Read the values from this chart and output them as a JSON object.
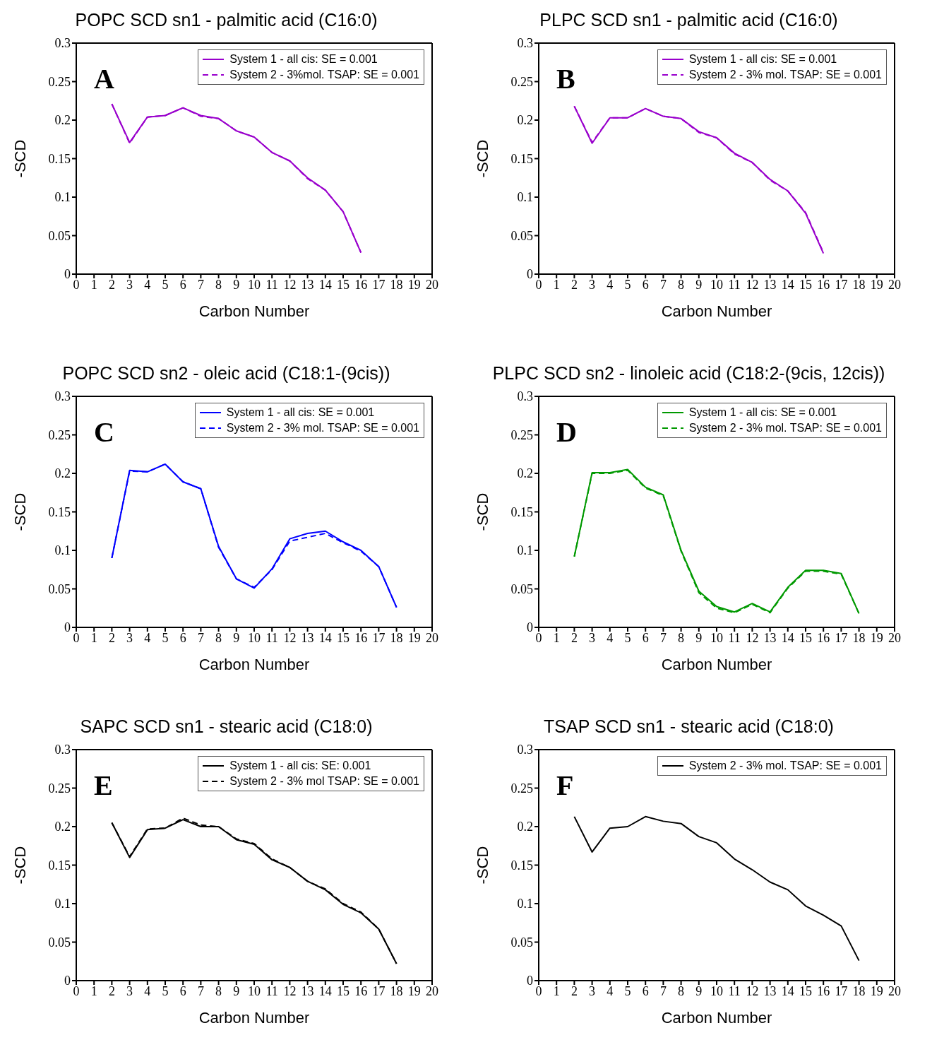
{
  "chart_data": [
    {
      "type": "line",
      "title": "POPC SCD sn1 - palmitic acid (C16:0)",
      "xlabel": "Carbon Number",
      "ylabel": "-SCD",
      "annotations": [
        "A"
      ],
      "x": [
        2,
        3,
        4,
        5,
        6,
        7,
        8,
        9,
        10,
        11,
        12,
        13,
        14,
        15,
        16
      ],
      "xlim": [
        0,
        20
      ],
      "xticks": [
        0,
        1,
        2,
        3,
        4,
        5,
        6,
        7,
        8,
        9,
        10,
        11,
        12,
        13,
        14,
        15,
        16,
        17,
        18,
        19,
        20
      ],
      "ylim": [
        0,
        0.3
      ],
      "yticks": [
        0,
        0.05,
        0.1,
        0.15,
        0.2,
        0.25,
        0.3
      ],
      "grid": false,
      "legend": "top right",
      "marker": "none",
      "series": [
        {
          "name": "System 1 - all cis: SE = 0.001",
          "color": "#9900cc",
          "line_style": "solid",
          "values": [
            0.221,
            0.171,
            0.204,
            0.206,
            0.216,
            0.206,
            0.202,
            0.186,
            0.178,
            0.158,
            0.147,
            0.125,
            0.109,
            0.081,
            0.028
          ]
        },
        {
          "name": "System 2 - 3%mol. TSAP: SE = 0.001",
          "color": "#9900cc",
          "line_style": "dashed",
          "values": [
            0.221,
            0.17,
            0.204,
            0.206,
            0.216,
            0.205,
            0.202,
            0.186,
            0.178,
            0.158,
            0.147,
            0.124,
            0.109,
            0.081,
            0.028
          ]
        }
      ]
    },
    {
      "type": "line",
      "title": "PLPC SCD sn1 - palmitic acid (C16:0)",
      "xlabel": "Carbon Number",
      "ylabel": "-SCD",
      "annotations": [
        "B"
      ],
      "x": [
        2,
        3,
        4,
        5,
        6,
        7,
        8,
        9,
        10,
        11,
        12,
        13,
        14,
        15,
        16
      ],
      "xlim": [
        0,
        20
      ],
      "xticks": [
        0,
        1,
        2,
        3,
        4,
        5,
        6,
        7,
        8,
        9,
        10,
        11,
        12,
        13,
        14,
        15,
        16,
        17,
        18,
        19,
        20
      ],
      "ylim": [
        0,
        0.3
      ],
      "yticks": [
        0,
        0.05,
        0.1,
        0.15,
        0.2,
        0.25,
        0.3
      ],
      "grid": false,
      "legend": "top right",
      "marker": "none",
      "series": [
        {
          "name": "System 1 - all cis: SE = 0.001",
          "color": "#9900cc",
          "line_style": "solid",
          "values": [
            0.218,
            0.17,
            0.203,
            0.203,
            0.215,
            0.205,
            0.202,
            0.185,
            0.177,
            0.157,
            0.145,
            0.123,
            0.108,
            0.079,
            0.027
          ]
        },
        {
          "name": "System 2 - 3% mol. TSAP: SE = 0.001",
          "color": "#9900cc",
          "line_style": "dashed",
          "values": [
            0.218,
            0.171,
            0.203,
            0.203,
            0.215,
            0.205,
            0.202,
            0.184,
            0.177,
            0.156,
            0.145,
            0.122,
            0.108,
            0.08,
            0.028
          ]
        }
      ]
    },
    {
      "type": "line",
      "title": "POPC SCD sn2 - oleic acid (C18:1-(9cis))",
      "xlabel": "Carbon Number",
      "ylabel": "-SCD",
      "annotations": [
        "C"
      ],
      "x": [
        2,
        3,
        4,
        5,
        6,
        7,
        8,
        9,
        10,
        11,
        12,
        13,
        14,
        15,
        16,
        17,
        18
      ],
      "xlim": [
        0,
        20
      ],
      "xticks": [
        0,
        1,
        2,
        3,
        4,
        5,
        6,
        7,
        8,
        9,
        10,
        11,
        12,
        13,
        14,
        15,
        16,
        17,
        18,
        19,
        20
      ],
      "ylim": [
        0,
        0.3
      ],
      "yticks": [
        0,
        0.05,
        0.1,
        0.15,
        0.2,
        0.25,
        0.3
      ],
      "grid": false,
      "legend": "top right",
      "marker": "none",
      "series": [
        {
          "name": "System 1 - all cis: SE = 0.001",
          "color": "#0000ff",
          "line_style": "solid",
          "values": [
            0.09,
            0.204,
            0.202,
            0.212,
            0.189,
            0.18,
            0.105,
            0.063,
            0.051,
            0.076,
            0.115,
            0.122,
            0.125,
            0.111,
            0.1,
            0.079,
            0.026
          ]
        },
        {
          "name": "System 2 - 3% mol. TSAP: SE = 0.001",
          "color": "#0000ff",
          "line_style": "dashed",
          "values": [
            0.09,
            0.203,
            0.202,
            0.212,
            0.189,
            0.18,
            0.104,
            0.063,
            0.052,
            0.075,
            0.112,
            0.117,
            0.122,
            0.11,
            0.099,
            0.079,
            0.026
          ]
        }
      ]
    },
    {
      "type": "line",
      "title": "PLPC SCD sn2 - linoleic acid (C18:2-(9cis, 12cis))",
      "xlabel": "Carbon Number",
      "ylabel": "-SCD",
      "annotations": [
        "D"
      ],
      "x": [
        2,
        3,
        4,
        5,
        6,
        7,
        8,
        9,
        10,
        11,
        12,
        13,
        14,
        15,
        16,
        17,
        18
      ],
      "xlim": [
        0,
        20
      ],
      "xticks": [
        0,
        1,
        2,
        3,
        4,
        5,
        6,
        7,
        8,
        9,
        10,
        11,
        12,
        13,
        14,
        15,
        16,
        17,
        18,
        19,
        20
      ],
      "ylim": [
        0,
        0.3
      ],
      "yticks": [
        0,
        0.05,
        0.1,
        0.15,
        0.2,
        0.25,
        0.3
      ],
      "grid": false,
      "legend": "top right",
      "marker": "none",
      "series": [
        {
          "name": "System 1 - all cis: SE = 0.001",
          "color": "#009900",
          "line_style": "solid",
          "values": [
            0.092,
            0.201,
            0.201,
            0.205,
            0.182,
            0.172,
            0.1,
            0.047,
            0.027,
            0.02,
            0.031,
            0.02,
            0.052,
            0.074,
            0.074,
            0.07,
            0.018
          ]
        },
        {
          "name": "System 2 - 3% mol. TSAP: SE = 0.001",
          "color": "#009900",
          "line_style": "dashed",
          "values": [
            0.092,
            0.2,
            0.2,
            0.204,
            0.181,
            0.171,
            0.099,
            0.045,
            0.025,
            0.019,
            0.03,
            0.019,
            0.051,
            0.073,
            0.073,
            0.069,
            0.018
          ]
        }
      ]
    },
    {
      "type": "line",
      "title": "SAPC SCD sn1 - stearic acid (C18:0)",
      "xlabel": "Carbon Number",
      "ylabel": "-SCD",
      "annotations": [
        "E"
      ],
      "x": [
        2,
        3,
        4,
        5,
        6,
        7,
        8,
        9,
        10,
        11,
        12,
        13,
        14,
        15,
        16,
        17,
        18
      ],
      "xlim": [
        0,
        20
      ],
      "xticks": [
        0,
        1,
        2,
        3,
        4,
        5,
        6,
        7,
        8,
        9,
        10,
        11,
        12,
        13,
        14,
        15,
        16,
        17,
        18,
        19,
        20
      ],
      "ylim": [
        0,
        0.3
      ],
      "yticks": [
        0,
        0.05,
        0.1,
        0.15,
        0.2,
        0.25,
        0.3
      ],
      "grid": false,
      "legend": "top right",
      "marker": "none",
      "series": [
        {
          "name": "System 1 - all cis: SE: 0.001",
          "color": "#000000",
          "line_style": "solid",
          "values": [
            0.205,
            0.16,
            0.196,
            0.198,
            0.209,
            0.2,
            0.2,
            0.183,
            0.177,
            0.157,
            0.147,
            0.129,
            0.118,
            0.099,
            0.088,
            0.067,
            0.022
          ]
        },
        {
          "name": "System 2 - 3% mol TSAP: SE = 0.001",
          "color": "#000000",
          "line_style": "dashed",
          "values": [
            0.205,
            0.161,
            0.197,
            0.198,
            0.211,
            0.202,
            0.2,
            0.184,
            0.178,
            0.158,
            0.147,
            0.129,
            0.119,
            0.1,
            0.089,
            0.067,
            0.022
          ]
        }
      ]
    },
    {
      "type": "line",
      "title": "TSAP SCD sn1 - stearic acid (C18:0)",
      "xlabel": "Carbon Number",
      "ylabel": "-SCD",
      "annotations": [
        "F"
      ],
      "x": [
        2,
        3,
        4,
        5,
        6,
        7,
        8,
        9,
        10,
        11,
        12,
        13,
        14,
        15,
        16,
        17,
        18
      ],
      "xlim": [
        0,
        20
      ],
      "xticks": [
        0,
        1,
        2,
        3,
        4,
        5,
        6,
        7,
        8,
        9,
        10,
        11,
        12,
        13,
        14,
        15,
        16,
        17,
        18,
        19,
        20
      ],
      "ylim": [
        0,
        0.3
      ],
      "yticks": [
        0,
        0.05,
        0.1,
        0.15,
        0.2,
        0.25,
        0.3
      ],
      "grid": false,
      "legend": "top right",
      "marker": "none",
      "series": [
        {
          "name": "System 2 - 3% mol. TSAP: SE = 0.001",
          "color": "#000000",
          "line_style": "solid",
          "values": [
            0.213,
            0.167,
            0.198,
            0.2,
            0.213,
            0.207,
            0.204,
            0.187,
            0.179,
            0.158,
            0.144,
            0.128,
            0.118,
            0.097,
            0.085,
            0.071,
            0.026
          ]
        }
      ]
    }
  ]
}
